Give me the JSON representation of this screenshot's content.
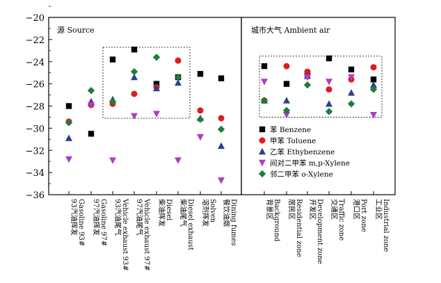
{
  "chart_data": [
    {
      "type": "scatter",
      "panel_label": "源 Source",
      "ylim": [
        -36,
        -20
      ],
      "y_ticks": [
        -20,
        -22,
        -24,
        -26,
        -28,
        -30,
        -32,
        -34,
        -36
      ],
      "categories": [
        {
          "cn": "93汽油挥发",
          "en": "Gasoline 93#"
        },
        {
          "cn": "97汽油挥发",
          "en": "Gasoline 97#"
        },
        {
          "cn": "93汽油尾气",
          "en": "Vehicle exhaust 93#"
        },
        {
          "cn": "97汽油尾气",
          "en": "Vehicle exhaust 97#"
        },
        {
          "cn": "柴油挥发",
          "en": "Diesel"
        },
        {
          "cn": "柴油尾气",
          "en": "Diesel exhaust"
        },
        {
          "cn": "溶剂挥发",
          "en": "Solven"
        },
        {
          "cn": "餐饮油烟",
          "en": "Dining fumes"
        }
      ],
      "series": [
        {
          "name": "苯 Benzene",
          "values": [
            -28.0,
            -30.5,
            -23.8,
            -22.9,
            -26.0,
            -25.4,
            -25.1,
            -25.5
          ]
        },
        {
          "name": "甲苯 Toluene",
          "values": [
            -29.4,
            -27.9,
            -27.8,
            -26.9,
            -26.3,
            -23.9,
            -28.4,
            -29.1
          ]
        },
        {
          "name": "乙苯 Ethybenzene",
          "values": [
            -30.9,
            -27.6,
            -27.4,
            -25.4,
            -26.4,
            -25.9,
            -29.1,
            -31.6
          ]
        },
        {
          "name": "间对二甲苯 m,p-Xylene",
          "values": [
            -32.8,
            -27.9,
            -32.9,
            -28.9,
            -28.7,
            -32.9,
            -30.8,
            -34.7
          ]
        },
        {
          "name": "邻二甲苯 o-Xylene",
          "values": [
            -29.5,
            -26.6,
            -27.6,
            -24.9,
            -23.6,
            -25.4,
            -29.2,
            -30.1
          ]
        }
      ]
    },
    {
      "type": "scatter",
      "panel_label": "城市大气 Ambient air",
      "ylim": [
        -36,
        -20
      ],
      "categories": [
        {
          "cn": "背景区",
          "en": "Background"
        },
        {
          "cn": "居民区",
          "en": "Residential zone"
        },
        {
          "cn": "开发区",
          "en": "Development zone"
        },
        {
          "cn": "交通区",
          "en": "Traffic zone"
        },
        {
          "cn": "港口区",
          "en": "Port zone"
        },
        {
          "cn": "工业区",
          "en": "Industrial zone"
        }
      ],
      "series": [
        {
          "name": "苯 Benzene",
          "values": [
            -24.4,
            -26.0,
            -25.1,
            -23.7,
            -24.7,
            -25.6
          ]
        },
        {
          "name": "甲苯 Toluene",
          "values": [
            -27.5,
            -24.4,
            -24.9,
            -26.5,
            -25.6,
            -24.5
          ]
        },
        {
          "name": "乙苯 Ethybenzene",
          "values": [
            -27.5,
            -27.5,
            -25.3,
            -27.8,
            -26.8,
            -26.1
          ]
        },
        {
          "name": "间对二甲苯 m,p-Xylene",
          "values": [
            -25.8,
            -28.8,
            -25.4,
            -25.8,
            -25.4,
            -28.8
          ]
        },
        {
          "name": "邻二甲苯 o-Xylene",
          "values": [
            -27.5,
            -28.4,
            -26.1,
            -28.5,
            -27.8,
            -26.5
          ]
        }
      ]
    }
  ],
  "legend": {
    "placement": "lower-left of right panel",
    "entries": [
      {
        "cn": "苯",
        "en": "Benzene"
      },
      {
        "cn": "甲苯",
        "en": "Toluene"
      },
      {
        "cn": "乙苯",
        "en": "Ethybenzene"
      },
      {
        "cn": "间对二甲苯",
        "en": "m,p-Xylene"
      },
      {
        "cn": "邻二甲苯",
        "en": "o-Xylene"
      }
    ]
  },
  "colors": {
    "benzene": "#000000",
    "toluene": "#e31a1c",
    "ethylbenzene": "#2c3e91",
    "xylene_mp": "#b23ac8",
    "xylene_o": "#1e7d3a"
  }
}
